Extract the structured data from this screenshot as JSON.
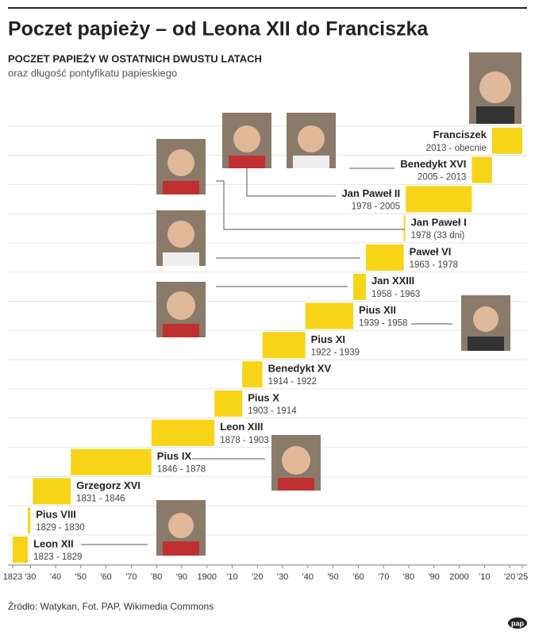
{
  "chart_data": {
    "type": "timeline",
    "title": "Poczet papieży – od Leona XII do Franciszka",
    "subtitle": "POCZET PAPIEŻY W OSTATNICH DWUSTU LATACH",
    "description": "oraz długość pontyfikatu papieskiego",
    "source": "Źródło: Watykan, Fot. PAP, Wikimedia Commons",
    "logo": "pap",
    "color": "#f7d417",
    "categories": [
      "Leon XII",
      "Pius VIII",
      "Grzegorz XVI",
      "Pius IX",
      "Leon XIII",
      "Pius X",
      "Benedykt XV",
      "Pius XI",
      "Pius XII",
      "Jan XXIII",
      "Paweł VI",
      "Jan Paweł I",
      "Jan Paweł II",
      "Benedykt XVI",
      "Franciszek"
    ],
    "start": [
      1823,
      1829,
      1831,
      1846,
      1878,
      1903,
      1914,
      1922,
      1939,
      1958,
      1963,
      1978,
      1978.8,
      2005,
      2013
    ],
    "end": [
      1829,
      1830,
      1846,
      1878,
      1903,
      1914,
      1922,
      1939,
      1958,
      1963,
      1978,
      1978.1,
      2005,
      2013,
      2025
    ],
    "date_labels": [
      "1823 - 1829",
      "1829 - 1830",
      "1831 - 1846",
      "1846 - 1878",
      "1878 - 1903",
      "1903 - 1914",
      "1914 - 1922",
      "1922 - 1939",
      "1939 - 1958",
      "1958 - 1963",
      "1963 - 1978",
      "1978 (33 dni)",
      "1978 - 2005",
      "2005 - 2013",
      "2013 - obecnie"
    ],
    "xlim": [
      1823,
      2025
    ],
    "xticks": [
      1823,
      {
        "value": 1830,
        "label": "'30"
      },
      {
        "value": 1840,
        "label": "'40"
      },
      {
        "value": 1850,
        "label": "'50"
      },
      {
        "value": 1860,
        "label": "'60"
      },
      {
        "value": 1870,
        "label": "'70"
      },
      {
        "value": 1880,
        "label": "'80"
      },
      {
        "value": 1890,
        "label": "'90"
      },
      1900,
      {
        "value": 1910,
        "label": "'10"
      },
      {
        "value": 1920,
        "label": "'20"
      },
      {
        "value": 1930,
        "label": "'30"
      },
      {
        "value": 1940,
        "label": "'40"
      },
      {
        "value": 1950,
        "label": "'50"
      },
      {
        "value": 1960,
        "label": "'60"
      },
      {
        "value": 1970,
        "label": "'70"
      },
      {
        "value": 1980,
        "label": "'80"
      },
      {
        "value": 1990,
        "label": "'90"
      },
      {
        "value": 2000,
        "label": "2000"
      },
      {
        "value": 2010,
        "label": "'10"
      },
      {
        "value": 2020,
        "label": "'20"
      },
      {
        "value": 2025,
        "label": "'25"
      }
    ],
    "grid": true
  }
}
